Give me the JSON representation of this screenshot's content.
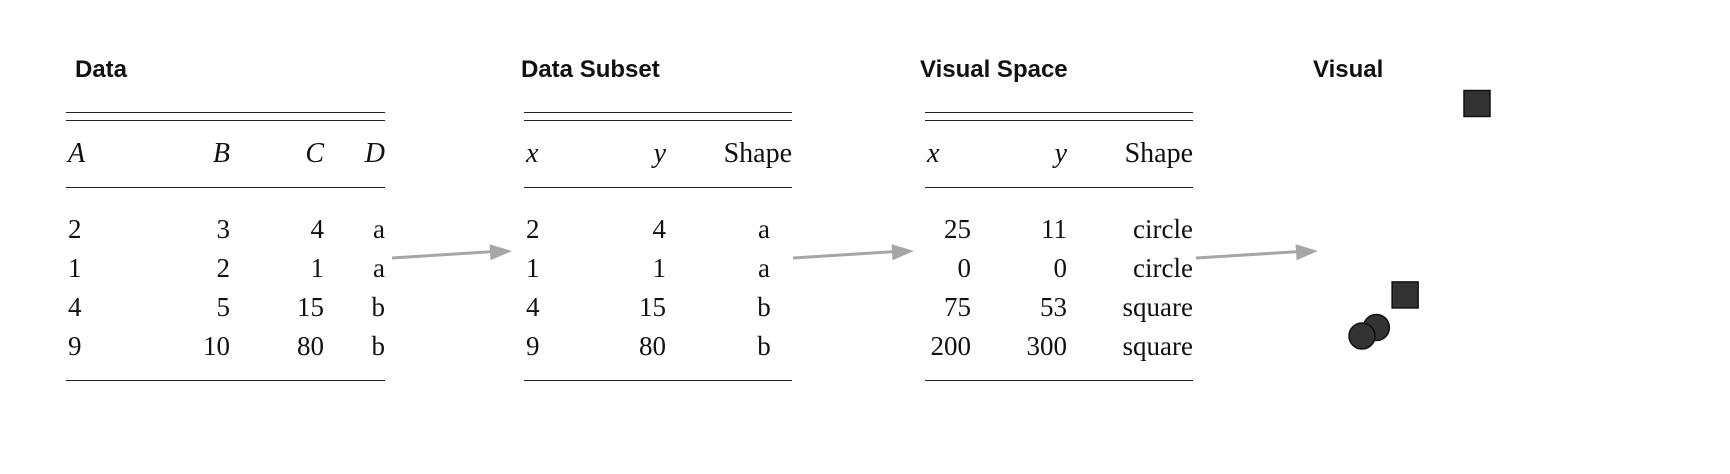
{
  "titles": {
    "data": "Data",
    "subset": "Data Subset",
    "visual_space": "Visual Space",
    "visual": "Visual"
  },
  "data_table": {
    "headers": [
      "A",
      "B",
      "C",
      "D"
    ],
    "rows": [
      [
        "2",
        "3",
        "4",
        "a"
      ],
      [
        "1",
        "2",
        "1",
        "a"
      ],
      [
        "4",
        "5",
        "15",
        "b"
      ],
      [
        "9",
        "10",
        "80",
        "b"
      ]
    ]
  },
  "subset_table": {
    "headers": [
      "x",
      "y",
      "Shape"
    ],
    "rows": [
      [
        "2",
        "4",
        "a"
      ],
      [
        "1",
        "1",
        "a"
      ],
      [
        "4",
        "15",
        "b"
      ],
      [
        "9",
        "80",
        "b"
      ]
    ]
  },
  "visual_space_table": {
    "headers": [
      "x",
      "y",
      "Shape"
    ],
    "rows": [
      [
        "25",
        "11",
        "circle"
      ],
      [
        "0",
        "0",
        "circle"
      ],
      [
        "75",
        "53",
        "square"
      ],
      [
        "200",
        "300",
        "square"
      ]
    ]
  },
  "visual_marks": [
    {
      "shape": "circle"
    },
    {
      "shape": "circle"
    },
    {
      "shape": "square"
    },
    {
      "shape": "square"
    }
  ],
  "colors": {
    "arrow": "#a6a6a6",
    "mark": "#333333",
    "text": "#111111"
  }
}
